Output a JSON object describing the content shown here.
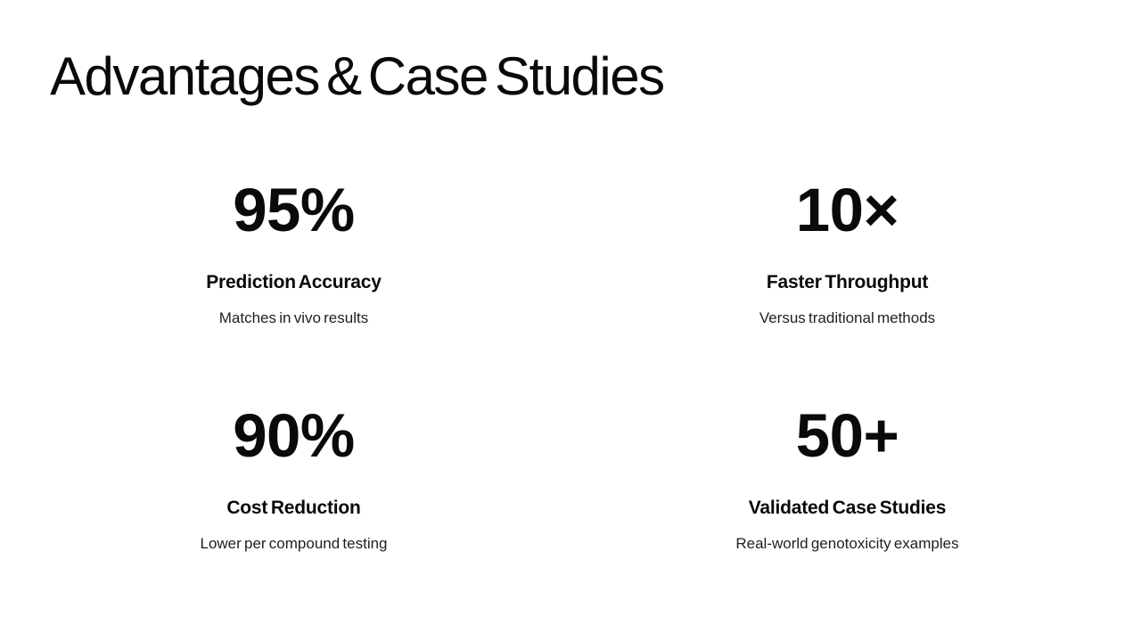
{
  "slide": {
    "title": "Advantages & Case Studies"
  },
  "stats": [
    {
      "value": "95%",
      "label": "Prediction Accuracy",
      "description": "Matches in vivo results"
    },
    {
      "value": "10×",
      "label": "Faster Throughput",
      "description": "Versus traditional methods"
    },
    {
      "value": "90%",
      "label": "Cost Reduction",
      "description": "Lower per compound testing"
    },
    {
      "value": "50+",
      "label": "Validated Case Studies",
      "description": "Real-world genotoxicity examples"
    }
  ],
  "colors": {
    "background": "#ffffff",
    "text": "#0a0a0a",
    "description_text": "#1f1f1f"
  }
}
